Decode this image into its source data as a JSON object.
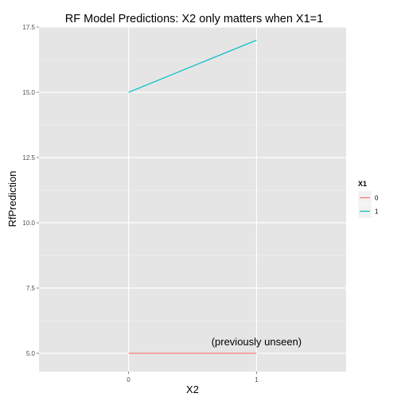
{
  "chart_data": {
    "type": "line",
    "title": "RF Model Predictions: X2 only matters when X1=1",
    "xlabel": "X2",
    "ylabel": "RfPrediction",
    "x": [
      0,
      1
    ],
    "x_tick_labels": [
      "0",
      "1"
    ],
    "xlim": [
      -0.7,
      1.7
    ],
    "ylim": [
      4.3,
      17.5
    ],
    "y_ticks": [
      5.0,
      7.5,
      10.0,
      12.5,
      15.0,
      17.5
    ],
    "y_tick_labels": [
      "5.0",
      "7.5",
      "10.0",
      "12.5",
      "15.0",
      "17.5"
    ],
    "legend_title": "X1",
    "legend_position": "right",
    "grid": true,
    "background_color": "#e5e5e5",
    "series": [
      {
        "name": "0",
        "color": "#f8766d",
        "values": [
          5.0,
          5.0
        ]
      },
      {
        "name": "1",
        "color": "#00bfc4",
        "values": [
          15.0,
          17.0
        ]
      }
    ],
    "annotations": [
      {
        "text": "(previously unseen)",
        "x": 1.0,
        "y": 5.3
      }
    ]
  }
}
